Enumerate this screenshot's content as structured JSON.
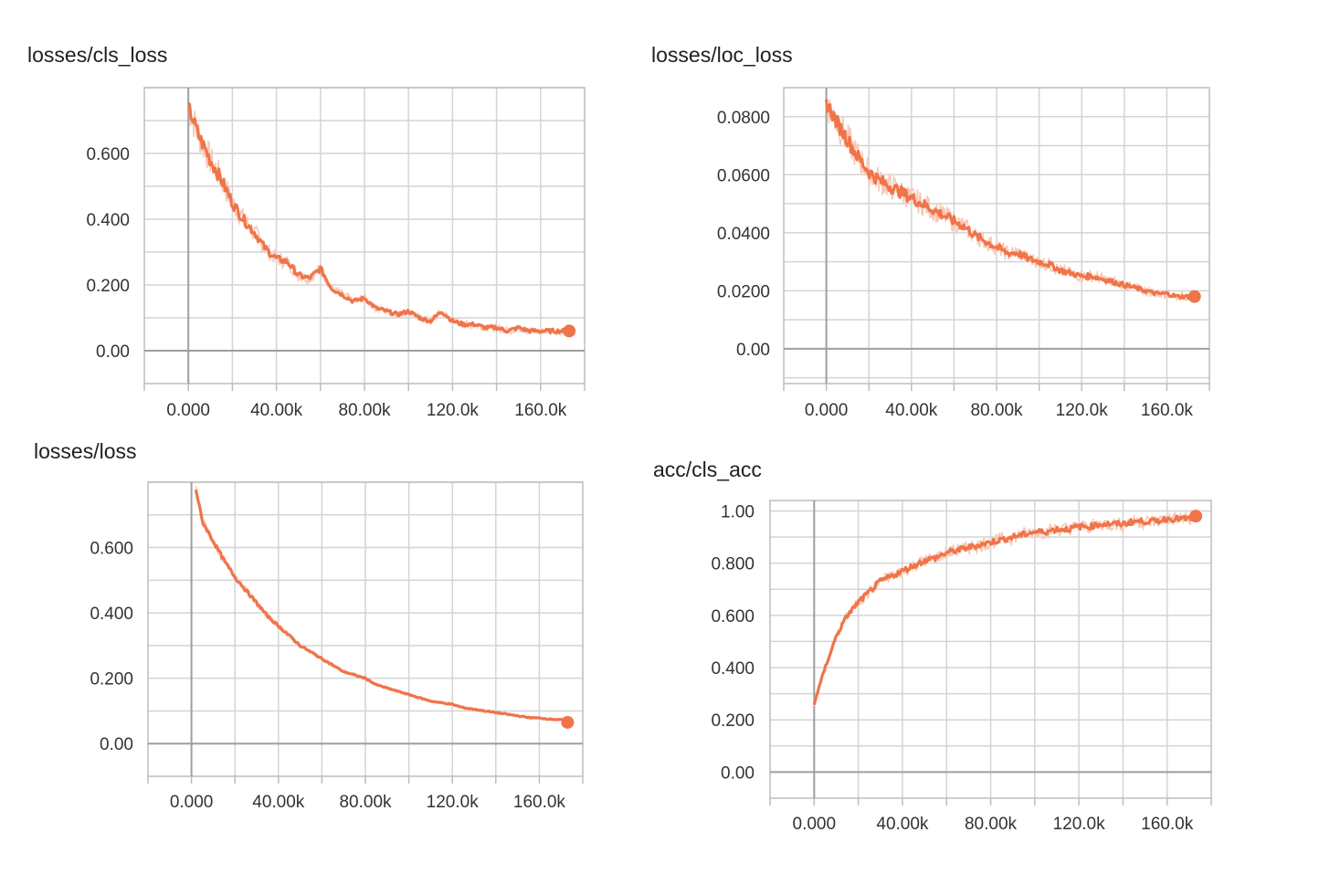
{
  "colors": {
    "series": "#f0744a",
    "series_raw": "#f7c9b6",
    "grid": "#d4d4d4",
    "axis": "#9e9e9e"
  },
  "chart_data": [
    {
      "type": "line",
      "title": "losses/cls_loss",
      "xlabel": "",
      "ylabel": "",
      "xlim": [
        -20000,
        180000
      ],
      "ylim": [
        -0.1,
        0.8
      ],
      "x_ticks": [
        0,
        40000,
        80000,
        120000,
        160000
      ],
      "x_tick_labels": [
        "0.000",
        "40.00k",
        "80.00k",
        "120.0k",
        "160.0k"
      ],
      "y_ticks": [
        0,
        0.2,
        0.4,
        0.6
      ],
      "y_tick_labels": [
        "0.00",
        "0.200",
        "0.400",
        "0.600"
      ],
      "grid": true,
      "series": [
        {
          "x": [
            0,
            5000,
            10000,
            15000,
            20000,
            25000,
            30000,
            35000,
            40000,
            45000,
            50000,
            55000,
            60000,
            65000,
            70000,
            75000,
            80000,
            85000,
            90000,
            95000,
            100000,
            105000,
            110000,
            115000,
            120000,
            125000,
            130000,
            135000,
            140000,
            145000,
            150000,
            155000,
            160000,
            165000,
            170000,
            173000
          ],
          "y": [
            0.74,
            0.65,
            0.58,
            0.52,
            0.45,
            0.4,
            0.36,
            0.31,
            0.28,
            0.27,
            0.23,
            0.22,
            0.25,
            0.19,
            0.17,
            0.15,
            0.16,
            0.13,
            0.12,
            0.11,
            0.12,
            0.1,
            0.09,
            0.12,
            0.09,
            0.08,
            0.08,
            0.07,
            0.07,
            0.06,
            0.07,
            0.06,
            0.06,
            0.06,
            0.06,
            0.06
          ]
        }
      ]
    },
    {
      "type": "line",
      "title": "losses/loc_loss",
      "xlabel": "",
      "ylabel": "",
      "xlim": [
        -20000,
        180000
      ],
      "ylim": [
        -0.012,
        0.09
      ],
      "x_ticks": [
        0,
        40000,
        80000,
        120000,
        160000
      ],
      "x_tick_labels": [
        "0.000",
        "40.00k",
        "80.00k",
        "120.0k",
        "160.0k"
      ],
      "y_ticks": [
        0,
        0.02,
        0.04,
        0.06,
        0.08
      ],
      "y_tick_labels": [
        "0.00",
        "0.0200",
        "0.0400",
        "0.0600",
        "0.0800"
      ],
      "grid": true,
      "series": [
        {
          "x": [
            0,
            5000,
            10000,
            15000,
            20000,
            25000,
            30000,
            35000,
            40000,
            45000,
            50000,
            55000,
            60000,
            65000,
            70000,
            75000,
            80000,
            85000,
            90000,
            95000,
            100000,
            105000,
            110000,
            115000,
            120000,
            125000,
            130000,
            135000,
            140000,
            145000,
            150000,
            155000,
            160000,
            165000,
            170000,
            173000
          ],
          "y": [
            0.085,
            0.078,
            0.072,
            0.066,
            0.061,
            0.058,
            0.056,
            0.054,
            0.052,
            0.05,
            0.048,
            0.046,
            0.044,
            0.042,
            0.039,
            0.037,
            0.035,
            0.033,
            0.033,
            0.031,
            0.03,
            0.029,
            0.027,
            0.026,
            0.025,
            0.025,
            0.024,
            0.023,
            0.022,
            0.021,
            0.02,
            0.019,
            0.019,
            0.018,
            0.018,
            0.018
          ]
        }
      ]
    },
    {
      "type": "line",
      "title": "losses/loss",
      "xlabel": "",
      "ylabel": "",
      "xlim": [
        -20000,
        180000
      ],
      "ylim": [
        -0.1,
        0.8
      ],
      "x_ticks": [
        0,
        40000,
        80000,
        120000,
        160000
      ],
      "x_tick_labels": [
        "0.000",
        "40.00k",
        "80.00k",
        "120.0k",
        "160.0k"
      ],
      "y_ticks": [
        0,
        0.2,
        0.4,
        0.6
      ],
      "y_tick_labels": [
        "0.00",
        "0.200",
        "0.400",
        "0.600"
      ],
      "grid": true,
      "series": [
        {
          "x": [
            2000,
            5000,
            10000,
            15000,
            20000,
            25000,
            30000,
            35000,
            40000,
            45000,
            50000,
            55000,
            60000,
            65000,
            70000,
            75000,
            80000,
            85000,
            90000,
            95000,
            100000,
            105000,
            110000,
            115000,
            120000,
            125000,
            130000,
            135000,
            140000,
            145000,
            150000,
            155000,
            160000,
            165000,
            170000,
            173000
          ],
          "y": [
            0.78,
            0.68,
            0.62,
            0.56,
            0.51,
            0.47,
            0.43,
            0.39,
            0.36,
            0.33,
            0.3,
            0.28,
            0.26,
            0.24,
            0.22,
            0.21,
            0.2,
            0.18,
            0.17,
            0.16,
            0.15,
            0.14,
            0.13,
            0.125,
            0.12,
            0.11,
            0.105,
            0.1,
            0.095,
            0.09,
            0.085,
            0.08,
            0.078,
            0.075,
            0.073,
            0.065
          ]
        }
      ]
    },
    {
      "type": "line",
      "title": "acc/cls_acc",
      "xlabel": "",
      "ylabel": "",
      "xlim": [
        -20000,
        180000
      ],
      "ylim": [
        -0.1,
        1.04
      ],
      "x_ticks": [
        0,
        40000,
        80000,
        120000,
        160000
      ],
      "x_tick_labels": [
        "0.000",
        "40.00k",
        "80.00k",
        "120.0k",
        "160.0k"
      ],
      "y_ticks": [
        0,
        0.2,
        0.4,
        0.6,
        0.8,
        1.0
      ],
      "y_tick_labels": [
        "0.00",
        "0.200",
        "0.400",
        "0.600",
        "0.800",
        "1.00"
      ],
      "grid": true,
      "series": [
        {
          "x": [
            0,
            2000,
            5000,
            10000,
            15000,
            20000,
            25000,
            30000,
            35000,
            40000,
            45000,
            50000,
            55000,
            60000,
            65000,
            70000,
            75000,
            80000,
            85000,
            90000,
            95000,
            100000,
            105000,
            110000,
            115000,
            120000,
            125000,
            130000,
            135000,
            140000,
            145000,
            150000,
            155000,
            160000,
            165000,
            170000,
            173000
          ],
          "y": [
            0.26,
            0.32,
            0.4,
            0.52,
            0.6,
            0.65,
            0.69,
            0.73,
            0.75,
            0.77,
            0.79,
            0.81,
            0.82,
            0.84,
            0.85,
            0.86,
            0.87,
            0.88,
            0.89,
            0.9,
            0.91,
            0.92,
            0.92,
            0.93,
            0.93,
            0.94,
            0.94,
            0.95,
            0.95,
            0.95,
            0.96,
            0.96,
            0.96,
            0.97,
            0.97,
            0.97,
            0.98
          ]
        }
      ]
    }
  ]
}
